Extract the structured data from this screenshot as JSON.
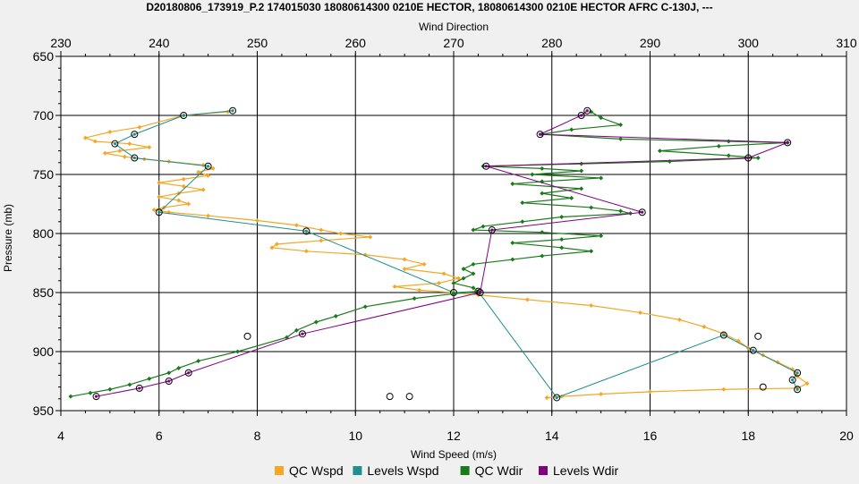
{
  "chart_data": {
    "type": "line",
    "title": "D20180806_173919_P.2 174015030 18080614300 0210E HECTOR, 18080614300 0210E HECTOR AFRC C-130J, ---",
    "top_axis_label": "Wind Direction",
    "xlabel": "Wind Speed (m/s)",
    "ylabel": "Pressure (mb)",
    "xlim_bottom": [
      4,
      20
    ],
    "xticks_bottom": [
      "4",
      "6",
      "8",
      "10",
      "12",
      "14",
      "16",
      "18",
      "20"
    ],
    "xlim_top": [
      230,
      310
    ],
    "xticks_top": [
      "230",
      "240",
      "250",
      "260",
      "270",
      "280",
      "290",
      "300",
      "310"
    ],
    "ylim": [
      650,
      950
    ],
    "y_inverted": true,
    "yticks": [
      "650",
      "700",
      "750",
      "800",
      "850",
      "900",
      "950"
    ],
    "grid": true,
    "legend_position": "bottom",
    "series": [
      {
        "name": "QC Wspd",
        "color": "#f5a623",
        "axis": "bottom",
        "marker": "diamond",
        "points": [
          [
            7.4,
            697
          ],
          [
            6.5,
            700
          ],
          [
            5.6,
            710
          ],
          [
            5.0,
            714
          ],
          [
            4.5,
            719
          ],
          [
            4.7,
            722
          ],
          [
            5.4,
            724
          ],
          [
            5.8,
            727
          ],
          [
            5.2,
            730
          ],
          [
            4.9,
            732
          ],
          [
            5.3,
            735
          ],
          [
            5.7,
            737
          ],
          [
            6.2,
            739
          ],
          [
            6.9,
            742
          ],
          [
            7.1,
            745
          ],
          [
            6.8,
            748
          ],
          [
            7.0,
            751
          ],
          [
            6.5,
            754
          ],
          [
            6.0,
            757
          ],
          [
            6.5,
            760
          ],
          [
            6.9,
            763
          ],
          [
            6.4,
            766
          ],
          [
            6.0,
            769
          ],
          [
            6.4,
            772
          ],
          [
            6.6,
            775
          ],
          [
            6.1,
            778
          ],
          [
            5.9,
            780
          ],
          [
            6.2,
            782
          ],
          [
            7.0,
            785
          ],
          [
            8.0,
            789
          ],
          [
            8.8,
            793
          ],
          [
            9.3,
            797
          ],
          [
            9.7,
            800
          ],
          [
            10.3,
            803
          ],
          [
            9.3,
            806
          ],
          [
            8.4,
            809
          ],
          [
            8.3,
            812
          ],
          [
            9.0,
            815
          ],
          [
            10.2,
            818
          ],
          [
            11.0,
            822
          ],
          [
            11.4,
            826
          ],
          [
            11.0,
            830
          ],
          [
            11.8,
            834
          ],
          [
            12.1,
            838
          ],
          [
            11.7,
            842
          ],
          [
            10.8,
            845
          ],
          [
            11.3,
            848
          ],
          [
            12.0,
            850
          ],
          [
            12.5,
            852
          ],
          [
            13.5,
            856
          ],
          [
            14.8,
            861
          ],
          [
            15.8,
            867
          ],
          [
            16.6,
            873
          ],
          [
            17.1,
            879
          ],
          [
            17.5,
            885
          ],
          [
            17.8,
            891
          ],
          [
            18.0,
            897
          ],
          [
            18.3,
            903
          ],
          [
            18.6,
            909
          ],
          [
            18.9,
            915
          ],
          [
            19.0,
            921
          ],
          [
            19.2,
            927
          ],
          [
            19.0,
            931
          ],
          [
            17.5,
            932
          ],
          [
            16.0,
            934
          ],
          [
            15.0,
            936
          ],
          [
            14.2,
            938
          ],
          [
            13.9,
            939
          ]
        ]
      },
      {
        "name": "Levels Wspd",
        "color": "#1f8f8f",
        "axis": "bottom",
        "marker": "circle",
        "points": [
          [
            7.5,
            696
          ],
          [
            6.5,
            700
          ],
          [
            5.5,
            716
          ],
          [
            5.1,
            724
          ],
          [
            5.5,
            736
          ],
          [
            7.0,
            743
          ],
          [
            6.0,
            782
          ],
          [
            9.0,
            798
          ],
          [
            12.0,
            850
          ],
          [
            12.5,
            849
          ],
          [
            14.1,
            939
          ],
          [
            17.5,
            886
          ],
          [
            18.1,
            899
          ],
          [
            19.0,
            918
          ],
          [
            18.9,
            924
          ],
          [
            19.0,
            932
          ]
        ]
      },
      {
        "name": "QC Wdir",
        "color": "#1a7a1a",
        "axis": "top",
        "marker": "diamond",
        "points": [
          [
            284.0,
            697
          ],
          [
            285.0,
            702
          ],
          [
            287.0,
            708
          ],
          [
            282.0,
            712
          ],
          [
            279.0,
            716
          ],
          [
            287.0,
            720
          ],
          [
            298.0,
            722
          ],
          [
            304.0,
            723
          ],
          [
            297.0,
            726
          ],
          [
            291.0,
            730
          ],
          [
            298.0,
            734
          ],
          [
            301.0,
            736
          ],
          [
            292.0,
            739
          ],
          [
            283.0,
            741
          ],
          [
            273.0,
            743
          ],
          [
            279.0,
            745
          ],
          [
            283.0,
            747
          ],
          [
            278.0,
            750
          ],
          [
            285.0,
            753
          ],
          [
            279.0,
            756
          ],
          [
            276.0,
            758
          ],
          [
            283.0,
            762
          ],
          [
            279.0,
            766
          ],
          [
            282.0,
            770
          ],
          [
            277.0,
            774
          ],
          [
            284.0,
            778
          ],
          [
            287.0,
            781
          ],
          [
            288.0,
            783
          ],
          [
            281.0,
            786
          ],
          [
            277.0,
            790
          ],
          [
            273.0,
            794
          ],
          [
            272.0,
            797
          ],
          [
            279.0,
            799
          ],
          [
            285.0,
            802
          ],
          [
            281.0,
            805
          ],
          [
            276.0,
            808
          ],
          [
            281.0,
            812
          ],
          [
            284.0,
            815
          ],
          [
            279.0,
            819
          ],
          [
            276.0,
            822
          ],
          [
            272.0,
            826
          ],
          [
            271.0,
            830
          ],
          [
            272.0,
            834
          ],
          [
            271.0,
            838
          ],
          [
            270.0,
            842
          ],
          [
            272.0,
            846
          ],
          [
            272.5,
            849
          ],
          [
            270.0,
            851
          ],
          [
            266.0,
            855
          ],
          [
            261.0,
            862
          ],
          [
            258.0,
            870
          ],
          [
            256.0,
            875
          ],
          [
            254.0,
            882
          ],
          [
            253.0,
            888
          ],
          [
            248.0,
            900
          ],
          [
            244.0,
            908
          ],
          [
            242.0,
            914
          ],
          [
            241.0,
            918
          ],
          [
            239.0,
            923
          ],
          [
            237.0,
            928
          ],
          [
            235.0,
            932
          ],
          [
            233.0,
            935
          ],
          [
            231.0,
            938
          ]
        ]
      },
      {
        "name": "Levels Wdir",
        "color": "#800080",
        "axis": "top",
        "marker": "circle",
        "points": [
          [
            283.6,
            696
          ],
          [
            283.0,
            700
          ],
          [
            278.8,
            716
          ],
          [
            304.0,
            723
          ],
          [
            300.0,
            736
          ],
          [
            273.3,
            743
          ],
          [
            289.2,
            782
          ],
          [
            273.9,
            797
          ],
          [
            272.7,
            850
          ],
          [
            254.6,
            885
          ],
          [
            243.0,
            918
          ],
          [
            241.0,
            925
          ],
          [
            238.0,
            931
          ],
          [
            233.6,
            938
          ]
        ]
      }
    ],
    "extra_circles_bottom_axis": [
      [
        7.8,
        887
      ],
      [
        10.7,
        938
      ],
      [
        11.1,
        938
      ],
      [
        18.2,
        887
      ],
      [
        18.3,
        930
      ]
    ]
  }
}
